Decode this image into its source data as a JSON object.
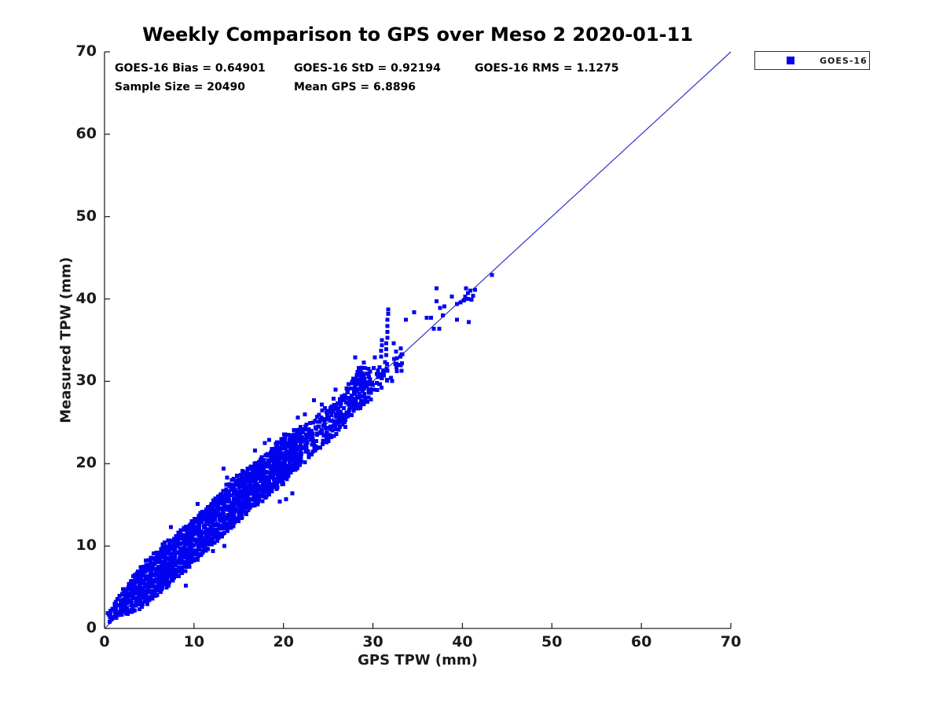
{
  "title": "Weekly Comparison to GPS over Meso 2 2020-01-11",
  "stats": {
    "items": [
      "GOES-16 Bias = 0.64901",
      "GOES-16 StD = 0.92194",
      "GOES-16 RMS = 1.1275",
      "Sample Size = 20490",
      "Mean GPS = 6.8896"
    ]
  },
  "legend": {
    "label": "GOES-16"
  },
  "colors": {
    "marker": "#0202f0",
    "ref_line": "#3333cc",
    "axis": "#262626",
    "tick_text": "#1a1a1a",
    "background": "#ffffff"
  },
  "chart_data": {
    "type": "scatter",
    "title": "Weekly Comparison to GPS over Meso 2 2020-01-11",
    "xlabel": "GPS TPW (mm)",
    "ylabel": "Measured TPW (mm)",
    "xlim": [
      0,
      70
    ],
    "ylim": [
      0,
      70
    ],
    "xticks": [
      0,
      10,
      20,
      30,
      40,
      50,
      60,
      70
    ],
    "yticks": [
      0,
      10,
      20,
      30,
      40,
      50,
      60,
      70
    ],
    "grid": false,
    "legend_position": "outside-top-right",
    "stats": {
      "bias": 0.64901,
      "std": 0.92194,
      "rms": 1.1275,
      "sample_size": 20490,
      "mean_gps": 6.8896
    },
    "reference_line": {
      "from": [
        0,
        0
      ],
      "to": [
        70,
        70
      ]
    },
    "series": [
      {
        "name": "GOES-16",
        "marker": "square",
        "color": "#0202f0",
        "dense_bands": [
          {
            "density": 1.0,
            "anchors": [
              [
                0.5,
                0.9,
                2.0
              ],
              [
                1,
                1.3,
                3.1
              ],
              [
                2,
                1.6,
                4.7
              ],
              [
                3,
                2.1,
                6.1
              ],
              [
                4,
                2.6,
                7.5
              ],
              [
                5,
                3.3,
                8.6
              ],
              [
                6,
                4.3,
                9.7
              ],
              [
                7,
                5.2,
                10.7
              ],
              [
                8,
                6.2,
                11.5
              ],
              [
                9,
                7.2,
                12.3
              ],
              [
                10,
                8.1,
                13.4
              ],
              [
                11,
                9.1,
                14.3
              ],
              [
                12,
                10.2,
                15.3
              ],
              [
                13,
                11.2,
                16.5
              ],
              [
                14,
                12.2,
                17.7
              ],
              [
                15,
                13.1,
                18.6
              ],
              [
                16,
                14.1,
                19.5
              ],
              [
                17,
                15.1,
                20.4
              ],
              [
                18,
                15.9,
                21.2
              ],
              [
                19,
                16.8,
                22.2
              ],
              [
                20,
                17.7,
                23.6
              ],
              [
                21,
                19.0,
                23.9
              ],
              [
                22,
                20.0,
                24.5
              ]
            ]
          },
          {
            "density": 0.68,
            "anchors": [
              [
                22,
                20.0,
                24.5
              ],
              [
                23,
                21.0,
                25.4
              ],
              [
                24,
                21.9,
                26.2
              ],
              [
                25,
                22.9,
                27.0
              ],
              [
                26,
                23.8,
                27.7
              ],
              [
                27,
                24.8,
                28.7
              ]
            ]
          },
          {
            "density": 0.8,
            "anchors": [
              [
                27,
                25.3,
                29.2
              ],
              [
                28,
                26.4,
                31.0
              ],
              [
                29,
                27.3,
                32.0
              ],
              [
                30,
                28.0,
                31.6
              ]
            ]
          },
          {
            "density": 0.42,
            "anchors": [
              [
                30,
                28.4,
                31.5
              ],
              [
                31,
                29.2,
                32.1
              ],
              [
                32,
                30.1,
                32.7
              ],
              [
                33.3,
                31.2,
                33.6
              ]
            ]
          }
        ],
        "points": [
          [
            0.6,
            1.4
          ],
          [
            9.1,
            5.2
          ],
          [
            12.1,
            9.4
          ],
          [
            13.4,
            10.0
          ],
          [
            19.6,
            15.4
          ],
          [
            20.3,
            15.7
          ],
          [
            21.0,
            16.4
          ],
          [
            7.4,
            12.3
          ],
          [
            10.4,
            15.1
          ],
          [
            13.3,
            19.4
          ],
          [
            13.7,
            18.3
          ],
          [
            16.8,
            21.6
          ],
          [
            17.9,
            22.5
          ],
          [
            18.4,
            22.9
          ],
          [
            21.6,
            25.6
          ],
          [
            22.4,
            26.0
          ],
          [
            23.4,
            27.7
          ],
          [
            24.3,
            27.2
          ],
          [
            25.6,
            27.9
          ],
          [
            25.8,
            29.0
          ],
          [
            28.0,
            32.9
          ],
          [
            28.4,
            31.6
          ],
          [
            29.0,
            32.3
          ],
          [
            30.2,
            32.9
          ],
          [
            33.0,
            32.0
          ],
          [
            33.2,
            33.3
          ],
          [
            30.9,
            33.0
          ],
          [
            30.9,
            33.7
          ],
          [
            31.0,
            34.4
          ],
          [
            31.0,
            35.0
          ],
          [
            31.5,
            33.2
          ],
          [
            31.5,
            33.9
          ],
          [
            31.5,
            34.6
          ],
          [
            31.6,
            35.3
          ],
          [
            31.6,
            36.0
          ],
          [
            31.6,
            36.7
          ],
          [
            31.6,
            37.5
          ],
          [
            31.7,
            38.2
          ],
          [
            31.7,
            38.7
          ],
          [
            32.3,
            34.6
          ],
          [
            32.6,
            33.6
          ],
          [
            33.1,
            34.0
          ],
          [
            33.7,
            37.5
          ],
          [
            34.6,
            38.4
          ],
          [
            36.0,
            37.7
          ],
          [
            36.5,
            37.7
          ],
          [
            36.8,
            36.4
          ],
          [
            37.4,
            36.4
          ],
          [
            37.1,
            41.3
          ],
          [
            37.1,
            39.7
          ],
          [
            37.5,
            38.9
          ],
          [
            38.0,
            39.1
          ],
          [
            37.8,
            38.0
          ],
          [
            38.8,
            40.3
          ],
          [
            39.4,
            39.4
          ],
          [
            39.8,
            39.6
          ],
          [
            40.2,
            39.8
          ],
          [
            40.6,
            40.0
          ],
          [
            41.0,
            39.9
          ],
          [
            39.4,
            37.5
          ],
          [
            40.7,
            37.2
          ],
          [
            40.3,
            40.3
          ],
          [
            40.6,
            40.7
          ],
          [
            40.9,
            41.0
          ],
          [
            41.2,
            40.4
          ],
          [
            41.4,
            41.1
          ],
          [
            40.4,
            41.3
          ],
          [
            43.3,
            42.9
          ]
        ]
      }
    ]
  }
}
